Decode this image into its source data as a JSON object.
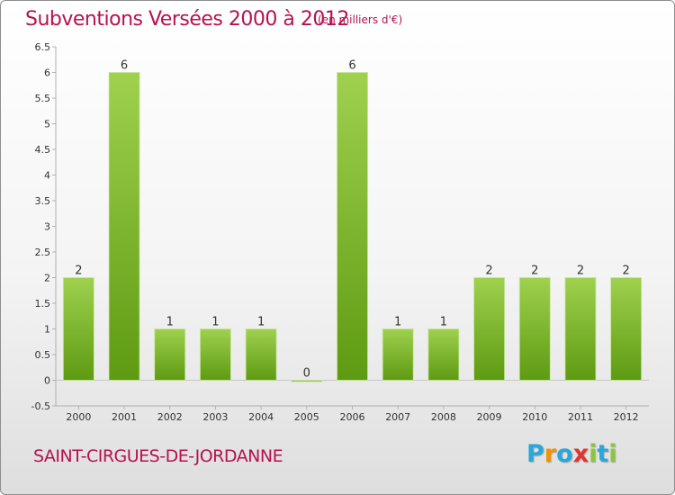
{
  "title": "Subventions Versées 2000 à 2012",
  "unit": "(en milliers d'€)",
  "commune": "SAINT-CIRGUES-DE-JORDANNE",
  "logo": {
    "text": "Proxiti",
    "letters": [
      "P",
      "r",
      "o",
      "x",
      "i",
      "t",
      "i"
    ],
    "colors": [
      "#2aa6da",
      "#f39200",
      "#2aa6da",
      "#e2342f",
      "#8cc63e",
      "#2aa6da",
      "#8cc63e"
    ]
  },
  "colors": {
    "title": "#b5124f",
    "bar_top": "#9fd14e",
    "bar_bottom": "#5e9a12",
    "axis": "#b0b0b0",
    "grid": "#c8c8c8",
    "tick_text": "#333333"
  },
  "chart_data": {
    "type": "bar",
    "title": "Subventions Versées 2000 à 2012",
    "unit": "(en milliers d'€)",
    "categories": [
      "2000",
      "2001",
      "2002",
      "2003",
      "2004",
      "2005",
      "2006",
      "2007",
      "2008",
      "2009",
      "2010",
      "2011",
      "2012"
    ],
    "values": [
      2,
      6,
      1,
      1,
      1,
      0,
      6,
      1,
      1,
      2,
      2,
      2,
      2
    ],
    "data_labels": [
      "2",
      "6",
      "1",
      "1",
      "1",
      "0",
      "6",
      "1",
      "1",
      "2",
      "2",
      "2",
      "2"
    ],
    "yticks": [
      "-0.5",
      "0",
      "0.5",
      "1",
      "1.5",
      "2",
      "2.5",
      "3",
      "3.5",
      "4",
      "4.5",
      "5",
      "5.5",
      "6",
      "6.5"
    ],
    "ylim": [
      -0.5,
      6.5
    ],
    "grid": false,
    "legend": "none"
  }
}
